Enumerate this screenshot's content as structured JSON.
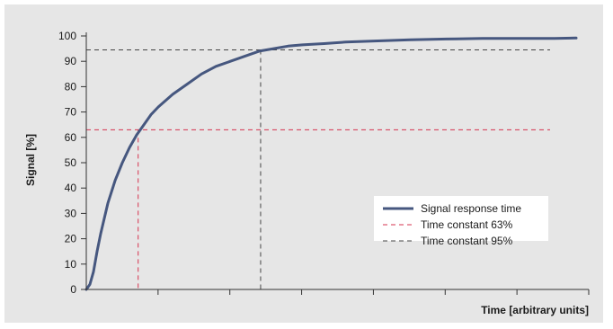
{
  "chart_data": {
    "type": "line",
    "title": "",
    "xlabel": "Time [arbitrary units]",
    "ylabel": "Signal [%]",
    "ylim": [
      0,
      100
    ],
    "xlim": [
      0,
      7
    ],
    "yticks": [
      "0",
      "10",
      "20",
      "30",
      "40",
      "50",
      "60",
      "70",
      "80",
      "90",
      "100"
    ],
    "xticks_count": 7,
    "grid": false,
    "legend_position": "right",
    "series": [
      {
        "name": "Signal response time",
        "color": "#46577f",
        "style": "solid",
        "x": [
          0,
          0.05,
          0.1,
          0.15,
          0.2,
          0.3,
          0.4,
          0.5,
          0.6,
          0.7,
          0.8,
          0.9,
          1.0,
          1.2,
          1.4,
          1.6,
          1.8,
          2.0,
          2.2,
          2.4,
          2.6,
          2.8,
          3.0,
          3.3,
          3.6,
          4.0,
          4.5,
          5.0,
          5.5,
          6.0,
          6.5,
          6.8
        ],
        "y": [
          0,
          2,
          7,
          15,
          22,
          34,
          43,
          50,
          56,
          61,
          65,
          69,
          72,
          77,
          81,
          85,
          88,
          90,
          92,
          94,
          95,
          96,
          96.5,
          97,
          97.6,
          98,
          98.5,
          98.8,
          99,
          99,
          99,
          99.2
        ]
      },
      {
        "name": "Time constant 63%",
        "color": "#d6334f",
        "style": "dashed",
        "y_level": 63,
        "x_at": 0.72
      },
      {
        "name": "Time constant 95%",
        "color": "#444444",
        "style": "dashed",
        "y_level": 94.5,
        "x_at": 2.42
      }
    ]
  }
}
